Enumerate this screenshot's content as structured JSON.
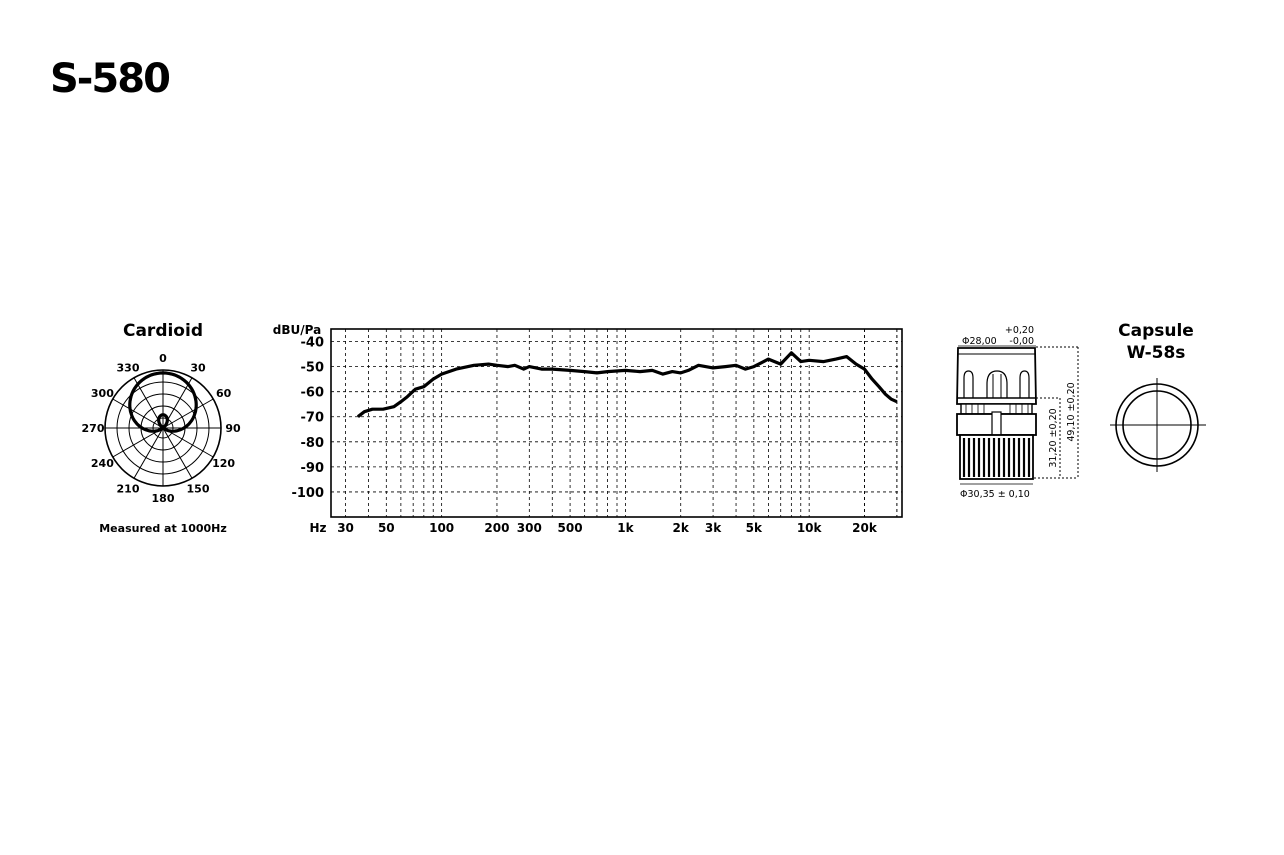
{
  "product": {
    "title": "S-580"
  },
  "polar": {
    "title": "Cardioid",
    "caption": "Measured at 1000Hz",
    "angle_labels": [
      "0",
      "30",
      "60",
      "90",
      "120",
      "150",
      "180",
      "210",
      "240",
      "270",
      "300",
      "330"
    ]
  },
  "capsule": {
    "title_line1": "Capsule",
    "title_line2": "W-58s"
  },
  "dimensions": {
    "top_diameter": "Φ28,00",
    "top_tol_plus": "+0,20",
    "top_tol_minus": "-0,00",
    "height_total": "49,10 ±0,20",
    "height_partial": "31,20 ±0,20",
    "bottom_diameter": "Φ30,35 ± 0,10"
  },
  "chart_data": {
    "type": "line",
    "title": "",
    "ylabel": "dBU/Pa",
    "xlabel": "Hz",
    "x_scale": "log",
    "xlim": [
      25,
      32000
    ],
    "ylim": [
      -110,
      -35
    ],
    "grid": true,
    "y_ticks": [
      -40,
      -50,
      -60,
      -70,
      -80,
      -90,
      -100
    ],
    "y_tick_labels": [
      "-40",
      "-50",
      "-60",
      "-70",
      "-80",
      "-90",
      "-100"
    ],
    "x_ticks": [
      30,
      50,
      100,
      200,
      300,
      500,
      1000,
      2000,
      3000,
      5000,
      10000,
      20000
    ],
    "x_tick_labels": [
      "30",
      "50",
      "100",
      "200",
      "300",
      "500",
      "1k",
      "2k",
      "3k",
      "5k",
      "10k",
      "20k"
    ],
    "series": [
      {
        "x": [
          35,
          38,
          42,
          48,
          55,
          60,
          65,
          72,
          80,
          90,
          100,
          120,
          150,
          180,
          200,
          230,
          250,
          280,
          300,
          350,
          400,
          500,
          600,
          700,
          800,
          1000,
          1200,
          1400,
          1600,
          1800,
          2000,
          2200,
          2500,
          3000,
          3500,
          4000,
          4500,
          5000,
          6000,
          7000,
          8000,
          9000,
          10000,
          12000,
          14000,
          16000,
          18000,
          20000,
          22000,
          24000,
          26000,
          28000,
          30000
        ],
        "y": [
          -70,
          -68,
          -67,
          -67,
          -66,
          -64,
          -62,
          -59,
          -58,
          -55,
          -53,
          -51,
          -49.5,
          -49,
          -49.5,
          -50,
          -49.5,
          -51,
          -50,
          -51,
          -51,
          -51.5,
          -52,
          -52.5,
          -52,
          -51.5,
          -52,
          -51.5,
          -53,
          -52,
          -52.5,
          -51.5,
          -49.5,
          -50.5,
          -50,
          -49.5,
          -51,
          -50,
          -47,
          -49,
          -44.5,
          -48,
          -47.5,
          -48,
          -47,
          -46,
          -49,
          -51,
          -55,
          -58,
          -61,
          -63,
          -64
        ]
      }
    ]
  }
}
